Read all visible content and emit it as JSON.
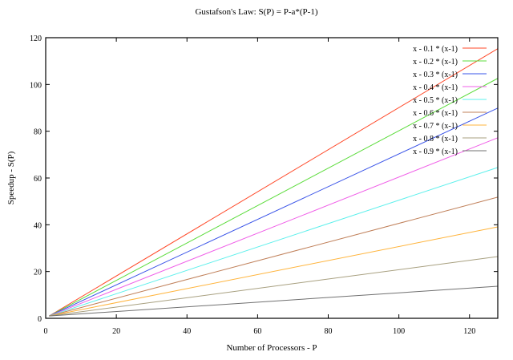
{
  "chart_data": {
    "type": "line",
    "title": "Gustafson's Law: S(P) = P-a*(P-1)",
    "xlabel": "Number of Processors - P",
    "ylabel": "Speedup - S(P)",
    "xlim": [
      0,
      128
    ],
    "ylim": [
      0,
      120
    ],
    "xticks": [
      0,
      20,
      40,
      60,
      80,
      100,
      120
    ],
    "yticks": [
      0,
      20,
      40,
      60,
      80,
      100,
      120
    ],
    "grid": false,
    "legend_position": "top-right",
    "x": [
      1,
      128
    ],
    "series": [
      {
        "name": "x - 0.1 * (x-1)",
        "a": 0.1,
        "color": "#ff4a2a",
        "values": [
          1,
          115.3
        ]
      },
      {
        "name": "x - 0.2 * (x-1)",
        "a": 0.2,
        "color": "#5cdc3c",
        "values": [
          1,
          102.6
        ]
      },
      {
        "name": "x - 0.3 * (x-1)",
        "a": 0.3,
        "color": "#3a54e8",
        "values": [
          1,
          89.9
        ]
      },
      {
        "name": "x - 0.4 * (x-1)",
        "a": 0.4,
        "color": "#f060e8",
        "values": [
          1,
          77.2
        ]
      },
      {
        "name": "x - 0.5 * (x-1)",
        "a": 0.5,
        "color": "#5ef0ec",
        "values": [
          1,
          64.5
        ]
      },
      {
        "name": "x - 0.6 * (x-1)",
        "a": 0.6,
        "color": "#c0805a",
        "values": [
          1,
          51.8
        ]
      },
      {
        "name": "x - 0.7 * (x-1)",
        "a": 0.7,
        "color": "#ffb43c",
        "values": [
          1,
          39.1
        ]
      },
      {
        "name": "x - 0.8 * (x-1)",
        "a": 0.8,
        "color": "#a8a080",
        "values": [
          1,
          26.4
        ]
      },
      {
        "name": "x - 0.9 * (x-1)",
        "a": 0.9,
        "color": "#707070",
        "values": [
          1,
          13.7
        ]
      }
    ]
  }
}
